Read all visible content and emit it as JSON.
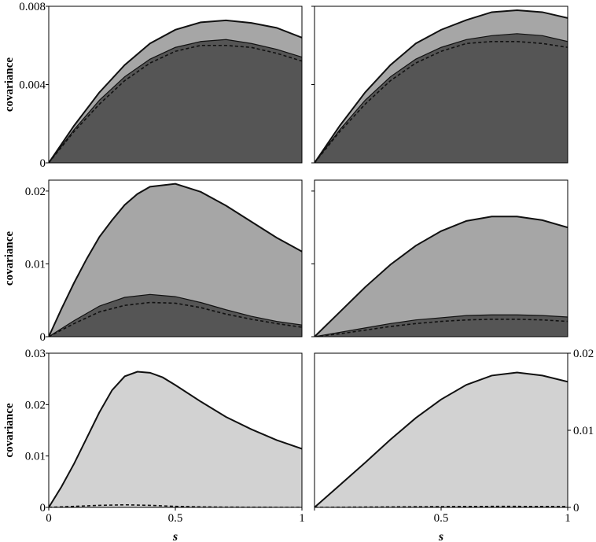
{
  "colors": {
    "dark_fill": "#555555",
    "mid_fill": "#a6a6a6",
    "light_fill": "#d2d2d2",
    "line": "#111111",
    "frame": "#000000"
  },
  "chart_data": [
    {
      "type": "area",
      "ylabel": "covariance",
      "xlabel": "",
      "xlim": [
        0,
        1
      ],
      "ylim": [
        0,
        0.008
      ],
      "xticks": [],
      "yticks": [
        {
          "v": 0,
          "label": "0"
        },
        {
          "v": 0.004,
          "label": "0.004"
        },
        {
          "v": 0.008,
          "label": "0.008"
        }
      ],
      "ytick_side": "left",
      "show_ytick_labels": true,
      "series": [
        {
          "style": "mid",
          "x": [
            0,
            0.1,
            0.2,
            0.3,
            0.4,
            0.5,
            0.6,
            0.7,
            0.8,
            0.9,
            1.0
          ],
          "values": [
            0,
            0.0019,
            0.0036,
            0.005,
            0.0061,
            0.0068,
            0.00718,
            0.00728,
            0.00715,
            0.0069,
            0.0064
          ]
        },
        {
          "style": "dark",
          "x": [
            0,
            0.1,
            0.2,
            0.3,
            0.4,
            0.5,
            0.6,
            0.7,
            0.8,
            0.9,
            1.0
          ],
          "values": [
            0,
            0.0017,
            0.0032,
            0.0044,
            0.0053,
            0.0059,
            0.0062,
            0.0063,
            0.0061,
            0.0058,
            0.0054
          ]
        },
        {
          "style": "dashed",
          "x": [
            0,
            0.1,
            0.2,
            0.3,
            0.4,
            0.5,
            0.6,
            0.7,
            0.8,
            0.9,
            1.0
          ],
          "values": [
            0,
            0.0016,
            0.003,
            0.0042,
            0.0051,
            0.0057,
            0.006,
            0.006,
            0.0059,
            0.0056,
            0.0052
          ]
        }
      ]
    },
    {
      "type": "area",
      "ylabel": "",
      "xlabel": "",
      "xlim": [
        0,
        1
      ],
      "ylim": [
        0,
        0.008
      ],
      "xticks": [],
      "yticks": [
        {
          "v": 0,
          "label": ""
        },
        {
          "v": 0.004,
          "label": ""
        },
        {
          "v": 0.008,
          "label": ""
        }
      ],
      "ytick_side": "left",
      "show_ytick_labels": false,
      "series": [
        {
          "style": "mid",
          "x": [
            0,
            0.1,
            0.2,
            0.3,
            0.4,
            0.5,
            0.6,
            0.7,
            0.8,
            0.9,
            1.0
          ],
          "values": [
            0,
            0.0019,
            0.0036,
            0.005,
            0.0061,
            0.0068,
            0.0073,
            0.0077,
            0.0078,
            0.0077,
            0.0074
          ]
        },
        {
          "style": "dark",
          "x": [
            0,
            0.1,
            0.2,
            0.3,
            0.4,
            0.5,
            0.6,
            0.7,
            0.8,
            0.9,
            1.0
          ],
          "values": [
            0,
            0.0017,
            0.0032,
            0.0044,
            0.0053,
            0.0059,
            0.0063,
            0.0065,
            0.0066,
            0.0065,
            0.0062
          ]
        },
        {
          "style": "dashed",
          "x": [
            0,
            0.1,
            0.2,
            0.3,
            0.4,
            0.5,
            0.6,
            0.7,
            0.8,
            0.9,
            1.0
          ],
          "values": [
            0,
            0.0016,
            0.003,
            0.0042,
            0.0051,
            0.0057,
            0.0061,
            0.0062,
            0.0062,
            0.0061,
            0.0059
          ]
        }
      ]
    },
    {
      "type": "area",
      "ylabel": "covariance",
      "xlabel": "",
      "xlim": [
        0,
        1
      ],
      "ylim": [
        0,
        0.0215
      ],
      "xticks": [],
      "yticks": [
        {
          "v": 0,
          "label": "0"
        },
        {
          "v": 0.01,
          "label": "0.01"
        },
        {
          "v": 0.02,
          "label": "0.02"
        }
      ],
      "ytick_side": "left",
      "show_ytick_labels": true,
      "series": [
        {
          "style": "mid",
          "x": [
            0,
            0.05,
            0.1,
            0.15,
            0.2,
            0.25,
            0.3,
            0.35,
            0.4,
            0.45,
            0.5,
            0.6,
            0.7,
            0.8,
            0.9,
            1.0
          ],
          "values": [
            0,
            0.0038,
            0.0074,
            0.0107,
            0.0137,
            0.016,
            0.0181,
            0.0196,
            0.0206,
            0.0208,
            0.021,
            0.0199,
            0.018,
            0.0158,
            0.0136,
            0.0117
          ]
        },
        {
          "style": "dark",
          "x": [
            0,
            0.1,
            0.2,
            0.3,
            0.4,
            0.5,
            0.6,
            0.7,
            0.8,
            0.9,
            1.0
          ],
          "values": [
            0,
            0.0022,
            0.0042,
            0.0054,
            0.0058,
            0.0055,
            0.0047,
            0.0037,
            0.0028,
            0.0021,
            0.0016
          ]
        },
        {
          "style": "dashed",
          "x": [
            0,
            0.1,
            0.2,
            0.3,
            0.4,
            0.5,
            0.6,
            0.7,
            0.8,
            0.9,
            1.0
          ],
          "values": [
            0,
            0.0018,
            0.0034,
            0.0043,
            0.0047,
            0.0046,
            0.004,
            0.0031,
            0.0024,
            0.0018,
            0.0013
          ]
        }
      ]
    },
    {
      "type": "area",
      "ylabel": "",
      "xlabel": "",
      "xlim": [
        0,
        1
      ],
      "ylim": [
        0,
        0.0215
      ],
      "xticks": [],
      "yticks": [
        {
          "v": 0,
          "label": ""
        },
        {
          "v": 0.01,
          "label": ""
        },
        {
          "v": 0.02,
          "label": ""
        }
      ],
      "ytick_side": "left",
      "show_ytick_labels": false,
      "series": [
        {
          "style": "mid",
          "x": [
            0,
            0.1,
            0.2,
            0.3,
            0.4,
            0.5,
            0.6,
            0.7,
            0.8,
            0.9,
            1.0
          ],
          "values": [
            0,
            0.0034,
            0.0068,
            0.0099,
            0.0125,
            0.0145,
            0.0159,
            0.0165,
            0.0165,
            0.016,
            0.015
          ]
        },
        {
          "style": "dark",
          "x": [
            0,
            0.1,
            0.2,
            0.3,
            0.4,
            0.5,
            0.6,
            0.7,
            0.8,
            0.9,
            1.0
          ],
          "values": [
            0,
            0.0006,
            0.0012,
            0.0018,
            0.0023,
            0.0026,
            0.0029,
            0.003,
            0.003,
            0.0029,
            0.0027
          ]
        },
        {
          "style": "dashed",
          "x": [
            0,
            0.1,
            0.2,
            0.3,
            0.4,
            0.5,
            0.6,
            0.7,
            0.8,
            0.9,
            1.0
          ],
          "values": [
            0,
            0.0004,
            0.0009,
            0.0014,
            0.0018,
            0.0021,
            0.0023,
            0.0024,
            0.0024,
            0.0023,
            0.0021
          ]
        }
      ]
    },
    {
      "type": "area",
      "ylabel": "covariance",
      "xlabel": "s",
      "xlim": [
        0,
        1
      ],
      "ylim": [
        0,
        0.03
      ],
      "xticks": [
        {
          "v": 0,
          "label": "0"
        },
        {
          "v": 0.5,
          "label": "0.5"
        },
        {
          "v": 1,
          "label": "1"
        }
      ],
      "yticks": [
        {
          "v": 0,
          "label": "0"
        },
        {
          "v": 0.01,
          "label": "0.01"
        },
        {
          "v": 0.02,
          "label": "0.02"
        },
        {
          "v": 0.03,
          "label": "0.03"
        }
      ],
      "ytick_side": "left",
      "show_ytick_labels": true,
      "series": [
        {
          "style": "light",
          "x": [
            0,
            0.05,
            0.1,
            0.15,
            0.2,
            0.25,
            0.3,
            0.35,
            0.4,
            0.45,
            0.5,
            0.6,
            0.7,
            0.8,
            0.9,
            1.0
          ],
          "values": [
            0,
            0.004,
            0.0085,
            0.0135,
            0.0185,
            0.0228,
            0.0255,
            0.0264,
            0.0262,
            0.0253,
            0.0238,
            0.0206,
            0.0176,
            0.0152,
            0.0131,
            0.0114
          ]
        },
        {
          "style": "dashed",
          "x": [
            0,
            0.1,
            0.2,
            0.3,
            0.4,
            0.5,
            0.6,
            0.7,
            0.8,
            0.9,
            1.0
          ],
          "values": [
            0,
            0.0002,
            0.0004,
            0.0005,
            0.0004,
            0.0002,
            0.0001,
            5e-05,
            3e-05,
            2e-05,
            1e-05
          ]
        }
      ]
    },
    {
      "type": "area",
      "ylabel": "",
      "xlabel": "s",
      "xlim": [
        0,
        1
      ],
      "ylim": [
        0,
        0.02
      ],
      "xticks": [
        {
          "v": 0,
          "label": ""
        },
        {
          "v": 0.5,
          "label": "0.5"
        },
        {
          "v": 1,
          "label": "1"
        }
      ],
      "yticks": [
        {
          "v": 0,
          "label": "0"
        },
        {
          "v": 0.01,
          "label": "0.01"
        },
        {
          "v": 0.02,
          "label": "0.02"
        }
      ],
      "ytick_side": "right",
      "show_ytick_labels": true,
      "series": [
        {
          "style": "light",
          "x": [
            0,
            0.1,
            0.2,
            0.3,
            0.4,
            0.5,
            0.6,
            0.7,
            0.8,
            0.9,
            1.0
          ],
          "values": [
            0,
            0.0029,
            0.0058,
            0.0088,
            0.0116,
            0.014,
            0.0159,
            0.0171,
            0.0175,
            0.0171,
            0.0163
          ]
        },
        {
          "style": "dashed",
          "x": [
            0,
            0.1,
            0.2,
            0.3,
            0.4,
            0.5,
            0.6,
            0.7,
            0.8,
            0.9,
            1.0
          ],
          "values": [
            0,
            2e-05,
            4e-05,
            6e-05,
            8e-05,
            0.0001,
            0.00012,
            0.00013,
            0.00013,
            0.00012,
            0.00011
          ]
        }
      ]
    }
  ]
}
